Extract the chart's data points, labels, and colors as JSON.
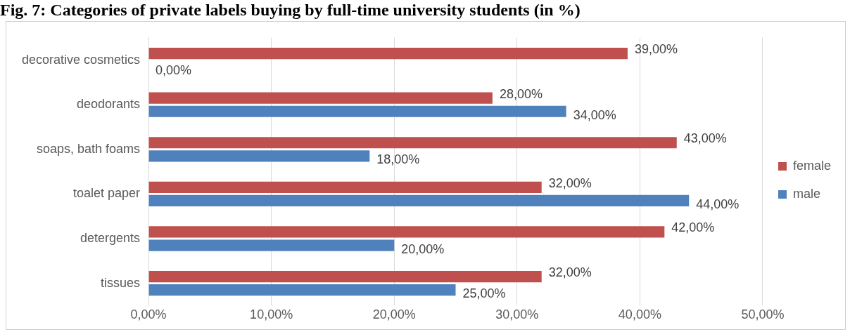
{
  "chart_data": {
    "type": "bar",
    "orientation": "horizontal",
    "title": "Fig. 7: Categories of private labels buying by full-time university students (in %)",
    "categories": [
      "decorative cosmetics",
      "deodorants",
      "soaps, bath foams",
      "toalet paper",
      "detergents",
      "tissues"
    ],
    "series": [
      {
        "name": "female",
        "color": "#c0504d",
        "values": [
          39,
          28,
          43,
          32,
          42,
          32
        ],
        "value_labels": [
          "39,00%",
          "28,00%",
          "43,00%",
          "32,00%",
          "42,00%",
          "32,00%"
        ]
      },
      {
        "name": "male",
        "color": "#4f81bd",
        "values": [
          0,
          34,
          18,
          44,
          20,
          25
        ],
        "value_labels": [
          "0,00%",
          "34,00%",
          "18,00%",
          "44,00%",
          "20,00%",
          "25,00%"
        ]
      }
    ],
    "xlim": [
      0,
      50
    ],
    "xticks": [
      {
        "value": 0,
        "label": "0,00%"
      },
      {
        "value": 10,
        "label": "10,00%"
      },
      {
        "value": 20,
        "label": "20,00%"
      },
      {
        "value": 30,
        "label": "30,00%"
      },
      {
        "value": 40,
        "label": "40,00%"
      },
      {
        "value": 50,
        "label": "50,00%"
      }
    ],
    "grid": "x",
    "legend": "right"
  }
}
